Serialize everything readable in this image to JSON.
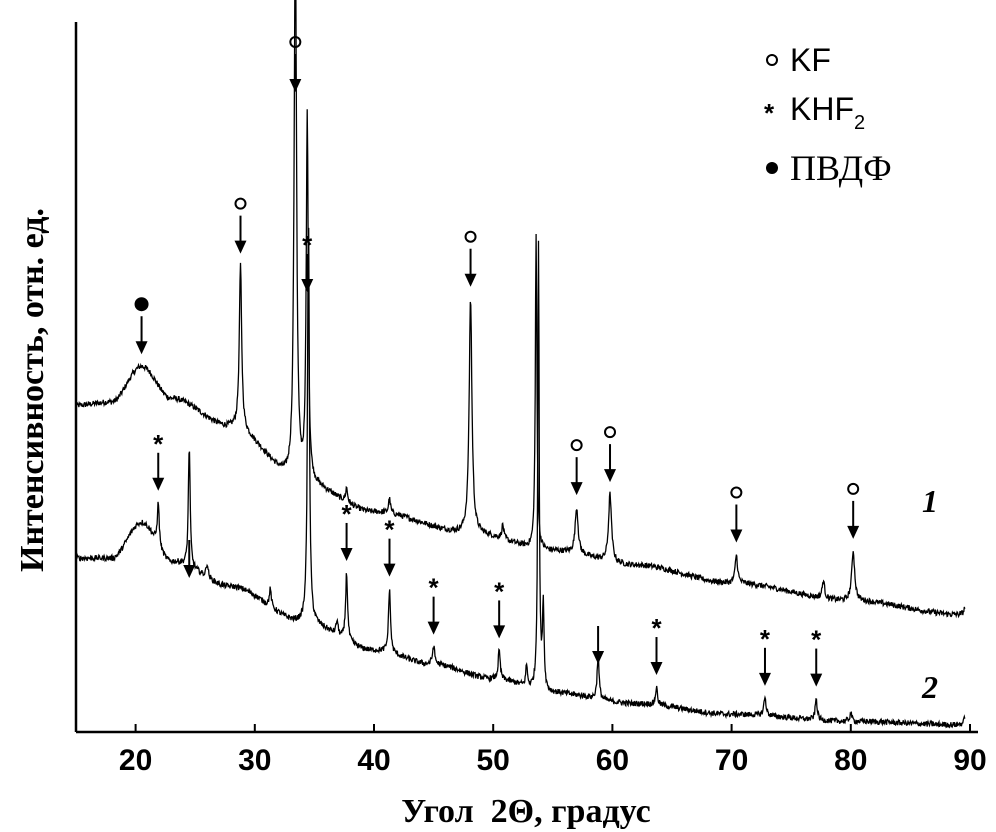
{
  "chart_data": {
    "type": "line",
    "xlabel": "Угол  2Θ, градус",
    "ylabel": "Интенсивность, отн. ед.",
    "xlim": [
      15,
      90
    ],
    "xticks": [
      20,
      30,
      40,
      50,
      60,
      70,
      80,
      90
    ],
    "yticks": [],
    "grid": false,
    "legend": {
      "placement": "top-right",
      "entries": [
        {
          "symbol": "open-circle",
          "label": "KF"
        },
        {
          "symbol": "star",
          "label": "KHF",
          "subscript": "2"
        },
        {
          "symbol": "filled-circle",
          "label": "ПВДФ"
        }
      ]
    },
    "series": [
      {
        "name": "1",
        "baseline": [
          [
            15,
            0.46
          ],
          [
            18,
            0.465
          ],
          [
            20.5,
            0.515
          ],
          [
            23,
            0.47
          ],
          [
            28,
            0.43
          ],
          [
            34,
            0.35
          ],
          [
            40,
            0.31
          ],
          [
            48,
            0.28
          ],
          [
            55,
            0.255
          ],
          [
            62,
            0.235
          ],
          [
            70,
            0.21
          ],
          [
            80,
            0.185
          ],
          [
            89.5,
            0.165
          ]
        ],
        "peaks": [
          {
            "x": 28.8,
            "height": 0.23,
            "width": 0.12
          },
          {
            "x": 33.4,
            "height": 0.79,
            "width": 0.12
          },
          {
            "x": 34.4,
            "height": 0.52,
            "width": 0.1
          },
          {
            "x": 37.7,
            "height": 0.02,
            "width": 0.1
          },
          {
            "x": 41.3,
            "height": 0.02,
            "width": 0.1
          },
          {
            "x": 48.1,
            "height": 0.33,
            "width": 0.14
          },
          {
            "x": 50.8,
            "height": 0.02,
            "width": 0.1
          },
          {
            "x": 53.6,
            "height": 0.44,
            "width": 0.08
          },
          {
            "x": 57.0,
            "height": 0.065,
            "width": 0.15
          },
          {
            "x": 59.8,
            "height": 0.095,
            "width": 0.15
          },
          {
            "x": 70.4,
            "height": 0.04,
            "width": 0.12
          },
          {
            "x": 77.7,
            "height": 0.025,
            "width": 0.12
          },
          {
            "x": 80.2,
            "height": 0.07,
            "width": 0.15
          },
          {
            "x": 89.7,
            "height": 0.035,
            "width": 0.1
          }
        ]
      },
      {
        "name": "2",
        "baseline": [
          [
            15,
            0.245
          ],
          [
            18,
            0.245
          ],
          [
            20.5,
            0.295
          ],
          [
            23,
            0.24
          ],
          [
            28,
            0.205
          ],
          [
            34,
            0.155
          ],
          [
            40,
            0.115
          ],
          [
            45,
            0.095
          ],
          [
            50,
            0.075
          ],
          [
            55,
            0.055
          ],
          [
            62,
            0.04
          ],
          [
            70,
            0.025
          ],
          [
            80,
            0.015
          ],
          [
            89.5,
            0.01
          ]
        ],
        "peaks": [
          {
            "x": 21.9,
            "height": 0.06,
            "width": 0.1
          },
          {
            "x": 24.5,
            "height": 0.17,
            "width": 0.09
          },
          {
            "x": 26.0,
            "height": 0.02,
            "width": 0.1
          },
          {
            "x": 31.3,
            "height": 0.025,
            "width": 0.1
          },
          {
            "x": 34.5,
            "height": 0.58,
            "width": 0.09
          },
          {
            "x": 36.9,
            "height": 0.02,
            "width": 0.1
          },
          {
            "x": 37.7,
            "height": 0.095,
            "width": 0.1
          },
          {
            "x": 41.3,
            "height": 0.09,
            "width": 0.1
          },
          {
            "x": 45.0,
            "height": 0.025,
            "width": 0.12
          },
          {
            "x": 50.5,
            "height": 0.04,
            "width": 0.1
          },
          {
            "x": 52.8,
            "height": 0.03,
            "width": 0.08
          },
          {
            "x": 53.8,
            "height": 0.63,
            "width": 0.07
          },
          {
            "x": 54.2,
            "height": 0.12,
            "width": 0.08
          },
          {
            "x": 58.8,
            "height": 0.06,
            "width": 0.1
          },
          {
            "x": 63.7,
            "height": 0.025,
            "width": 0.1
          },
          {
            "x": 72.8,
            "height": 0.025,
            "width": 0.12
          },
          {
            "x": 77.1,
            "height": 0.03,
            "width": 0.1
          },
          {
            "x": 80.0,
            "height": 0.012,
            "width": 0.1
          },
          {
            "x": 89.7,
            "height": 0.05,
            "width": 0.08
          }
        ]
      }
    ],
    "annotations": [
      {
        "x": 20.5,
        "series": "1",
        "marker": "filled-circle"
      },
      {
        "x": 28.8,
        "series": "1",
        "marker": "open-circle"
      },
      {
        "x": 33.4,
        "series": "1",
        "marker": "open-circle"
      },
      {
        "x": 34.4,
        "series": "1",
        "marker": "star"
      },
      {
        "x": 48.1,
        "series": "1",
        "marker": "open-circle"
      },
      {
        "x": 57.0,
        "series": "1",
        "marker": "open-circle"
      },
      {
        "x": 59.8,
        "series": "1",
        "marker": "open-circle"
      },
      {
        "x": 70.4,
        "series": "1",
        "marker": "open-circle"
      },
      {
        "x": 80.2,
        "series": "1",
        "marker": "open-circle"
      },
      {
        "x": 21.9,
        "series": "2",
        "marker": "star"
      },
      {
        "x": 24.5,
        "series": "2",
        "marker": "none"
      },
      {
        "x": 37.7,
        "series": "2",
        "marker": "star"
      },
      {
        "x": 41.3,
        "series": "2",
        "marker": "star"
      },
      {
        "x": 45.0,
        "series": "2",
        "marker": "star"
      },
      {
        "x": 50.5,
        "series": "2",
        "marker": "star"
      },
      {
        "x": 58.8,
        "series": "2",
        "marker": "none"
      },
      {
        "x": 63.7,
        "series": "2",
        "marker": "star"
      },
      {
        "x": 72.8,
        "series": "2",
        "marker": "star"
      },
      {
        "x": 77.1,
        "series": "2",
        "marker": "star"
      }
    ],
    "curve_labels": [
      {
        "series": "1",
        "text": "1"
      },
      {
        "series": "2",
        "text": "2"
      }
    ]
  }
}
